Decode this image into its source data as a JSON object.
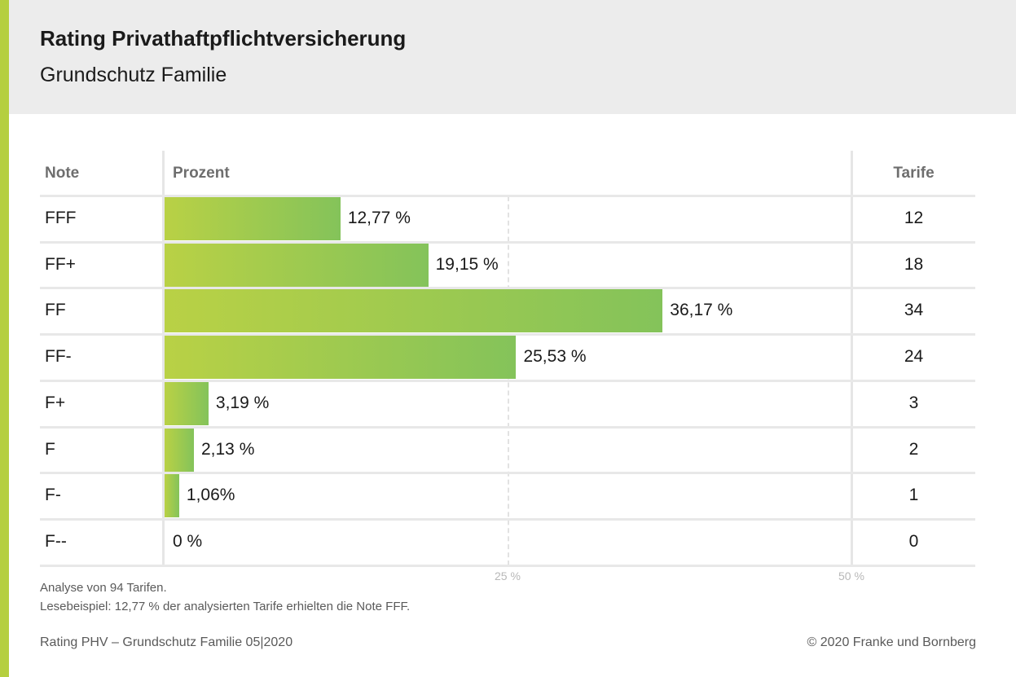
{
  "header": {
    "title": "Rating Privathaftpflichtversicherung",
    "subtitle": "Grundschutz Familie"
  },
  "colors": {
    "accent": "#b5cf3f",
    "bar_start": "#b9d145",
    "bar_end": "#84c35a",
    "header_bg": "#ececec"
  },
  "chart_data": {
    "type": "bar",
    "orientation": "horizontal",
    "columns": [
      "Note",
      "Prozent",
      "Tarife"
    ],
    "categories": [
      "FFF",
      "FF+",
      "FF",
      "FF-",
      "F+",
      "F",
      "F-",
      "F--"
    ],
    "values": [
      12.77,
      19.15,
      36.17,
      25.53,
      3.19,
      2.13,
      1.06,
      0
    ],
    "value_labels": [
      "12,77 %",
      "19,15 %",
      "36,17 %",
      "25,53 %",
      "3,19 %",
      "2,13 %",
      "1,06%",
      "0 %"
    ],
    "tarife": [
      "12",
      "18",
      "34",
      "24",
      "3",
      "2",
      "1",
      "0"
    ],
    "xlim": [
      0,
      50
    ],
    "ticks": [
      "25 %",
      "50 %"
    ],
    "grid": true
  },
  "notes": {
    "analysis": "Analyse von 94 Tarifen.",
    "reading_example": "Lesebeispiel: 12,77 % der analysierten Tarife erhielten die Note FFF."
  },
  "footer": {
    "left": "Rating PHV – Grundschutz Familie 05|2020",
    "right": "© 2020 Franke und Bornberg"
  }
}
